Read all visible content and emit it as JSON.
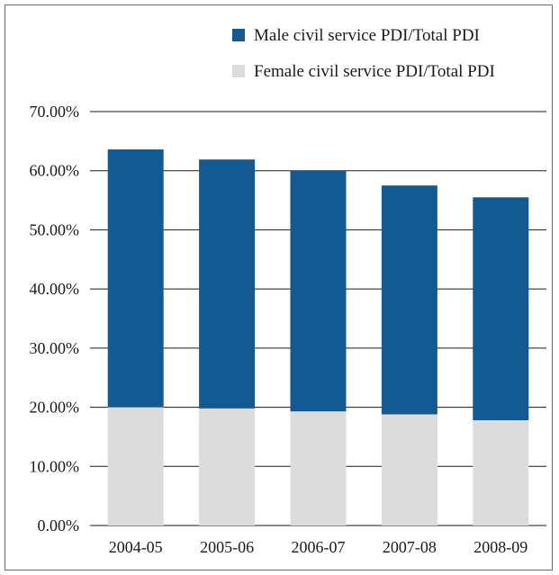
{
  "chart_data": {
    "type": "bar",
    "stacked": true,
    "title": "",
    "xlabel": "",
    "ylabel": "",
    "categories": [
      "2004-05",
      "2005-06",
      "2006-07",
      "2007-08",
      "2008-09"
    ],
    "series": [
      {
        "name": "Female civil service PDI/Total PDI",
        "color": "#dcdcdc",
        "values": [
          20.0,
          19.8,
          19.3,
          18.8,
          17.8
        ]
      },
      {
        "name": "Male civil service PDI/Total PDI",
        "color": "#145a92",
        "values": [
          43.6,
          42.1,
          40.7,
          38.7,
          37.7
        ]
      }
    ],
    "legend_order": [
      1,
      0
    ],
    "legend_position": "top-right",
    "ylim": [
      0,
      70
    ],
    "yticks": [
      0,
      10,
      20,
      30,
      40,
      50,
      60,
      70
    ],
    "ytick_labels": [
      "0.00%",
      "10.00%",
      "20.00%",
      "30.00%",
      "40.00%",
      "50.00%",
      "60.00%",
      "70.00%"
    ],
    "grid": true
  }
}
